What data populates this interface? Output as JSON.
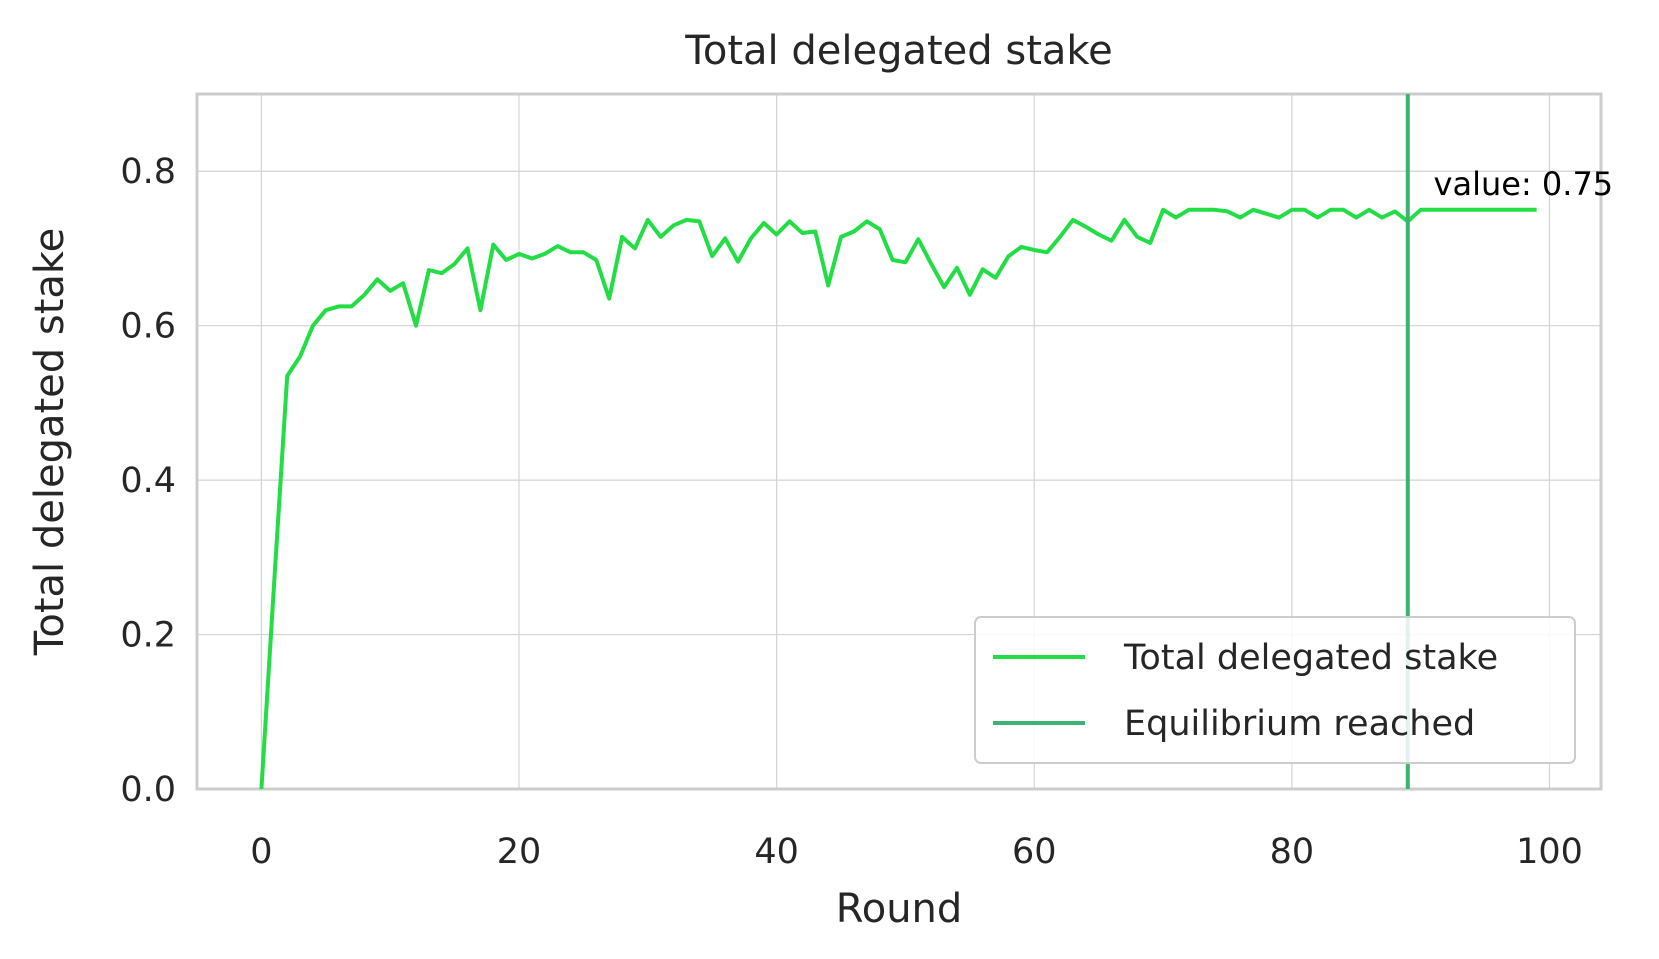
{
  "chart_data": {
    "type": "line",
    "title": "Total delegated stake",
    "xlabel": "Round",
    "ylabel": "Total delegated stake",
    "xlim": [
      -5,
      104
    ],
    "ylim": [
      0,
      0.9
    ],
    "xticks": [
      0,
      20,
      40,
      60,
      80,
      100
    ],
    "xtick_labels": [
      "0",
      "20",
      "40",
      "60",
      "80",
      "100"
    ],
    "yticks": [
      0.0,
      0.2,
      0.4,
      0.6,
      0.8
    ],
    "ytick_labels": [
      "0.0",
      "0.2",
      "0.4",
      "0.6",
      "0.8"
    ],
    "grid": true,
    "legend_position": "lower-right",
    "series": [
      {
        "name": "Total delegated stake",
        "color": "#22dd44",
        "x": [
          0,
          1,
          2,
          3,
          4,
          5,
          6,
          7,
          8,
          9,
          10,
          11,
          12,
          13,
          14,
          15,
          16,
          17,
          18,
          19,
          20,
          21,
          22,
          23,
          24,
          25,
          26,
          27,
          28,
          29,
          30,
          31,
          32,
          33,
          34,
          35,
          36,
          37,
          38,
          39,
          40,
          41,
          42,
          43,
          44,
          45,
          46,
          47,
          48,
          49,
          50,
          51,
          52,
          53,
          54,
          55,
          56,
          57,
          58,
          59,
          60,
          61,
          62,
          63,
          64,
          65,
          66,
          67,
          68,
          69,
          70,
          71,
          72,
          73,
          74,
          75,
          76,
          77,
          78,
          79,
          80,
          81,
          82,
          83,
          84,
          85,
          86,
          87,
          88,
          89,
          90,
          91,
          92,
          93,
          94,
          95,
          96,
          97,
          98,
          99
        ],
        "y": [
          0.0,
          0.27,
          0.535,
          0.56,
          0.6,
          0.62,
          0.625,
          0.625,
          0.64,
          0.66,
          0.645,
          0.655,
          0.6,
          0.672,
          0.668,
          0.68,
          0.7,
          0.62,
          0.705,
          0.685,
          0.693,
          0.687,
          0.693,
          0.703,
          0.695,
          0.695,
          0.685,
          0.635,
          0.715,
          0.7,
          0.737,
          0.715,
          0.73,
          0.737,
          0.735,
          0.69,
          0.713,
          0.683,
          0.713,
          0.733,
          0.718,
          0.735,
          0.72,
          0.722,
          0.652,
          0.715,
          0.722,
          0.735,
          0.725,
          0.685,
          0.682,
          0.712,
          0.68,
          0.65,
          0.675,
          0.64,
          0.673,
          0.662,
          0.69,
          0.702,
          0.698,
          0.695,
          0.715,
          0.737,
          0.728,
          0.718,
          0.71,
          0.737,
          0.715,
          0.707,
          0.75,
          0.74,
          0.75,
          0.75,
          0.75,
          0.748,
          0.74,
          0.75,
          0.745,
          0.74,
          0.75,
          0.75,
          0.74,
          0.75,
          0.75,
          0.74,
          0.75,
          0.74,
          0.748,
          0.735,
          0.75,
          0.75,
          0.75,
          0.75,
          0.75,
          0.75,
          0.75,
          0.75,
          0.75,
          0.75
        ]
      },
      {
        "name": "Equilibrium reached",
        "color": "#3cb371",
        "type": "vline",
        "x": 89
      }
    ],
    "annotations": [
      {
        "text": "value: 0.75",
        "x": 91,
        "y": 0.785
      }
    ]
  }
}
